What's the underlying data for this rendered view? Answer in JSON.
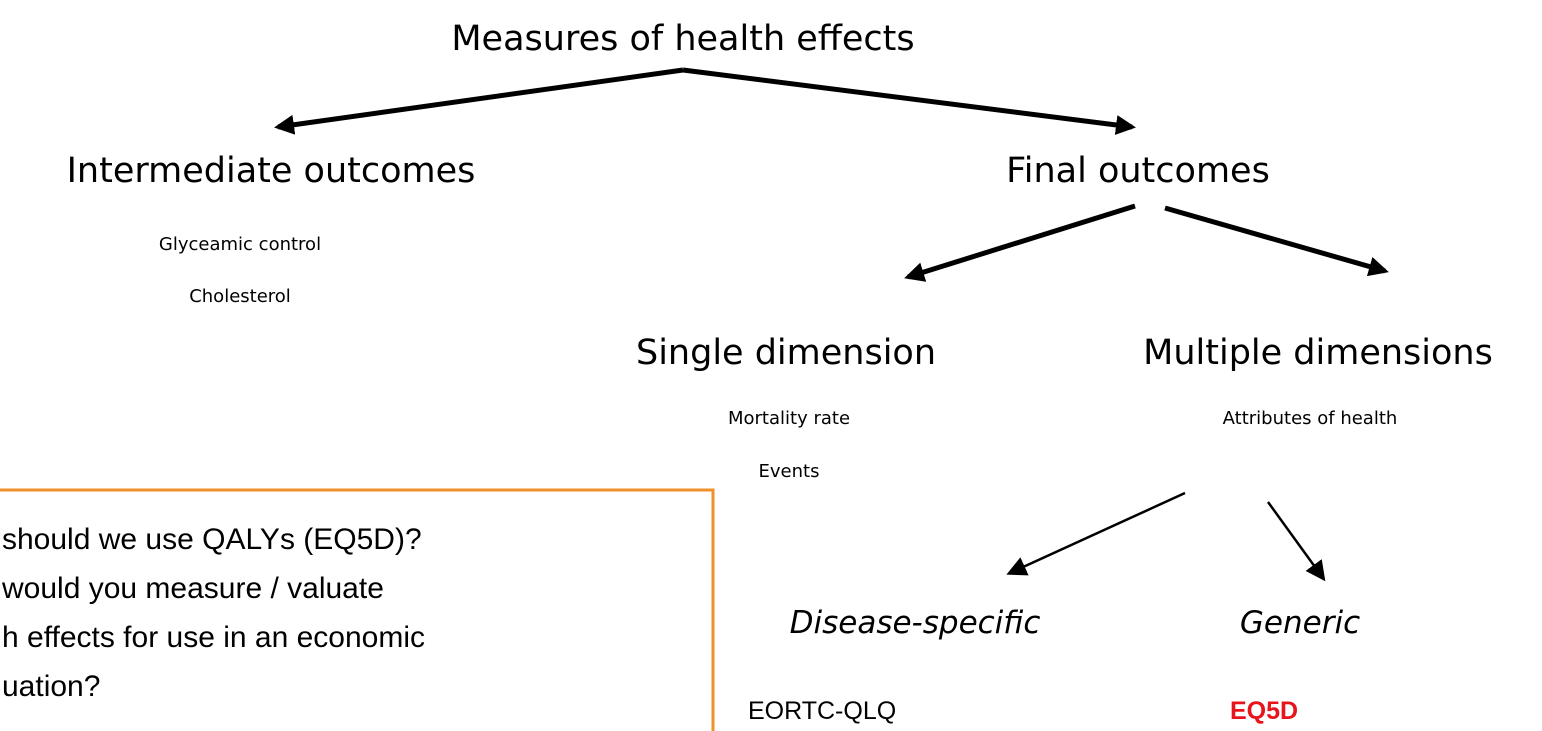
{
  "title": "Measures of health effects",
  "nodes": [
    {
      "label": "Intermediate outcomes",
      "examples": [
        "Glyceamic control",
        "Cholesterol"
      ]
    },
    {
      "label": "Final outcomes"
    },
    {
      "label": "Single dimension",
      "examples": [
        "Mortality rate",
        "Events"
      ]
    },
    {
      "label": "Multiple dimensions",
      "examples": [
        "Attributes of health"
      ]
    },
    {
      "label": "Disease-specific",
      "examples": [
        "EORTC-QLQ"
      ]
    },
    {
      "label": "Generic",
      "examples": [
        "EQ5D"
      ]
    }
  ],
  "question_box": {
    "lines": [
      "should we use QALYs (EQ5D)?",
      "would you measure / valuate",
      "h effects for use in an economic",
      "uation?"
    ]
  }
}
